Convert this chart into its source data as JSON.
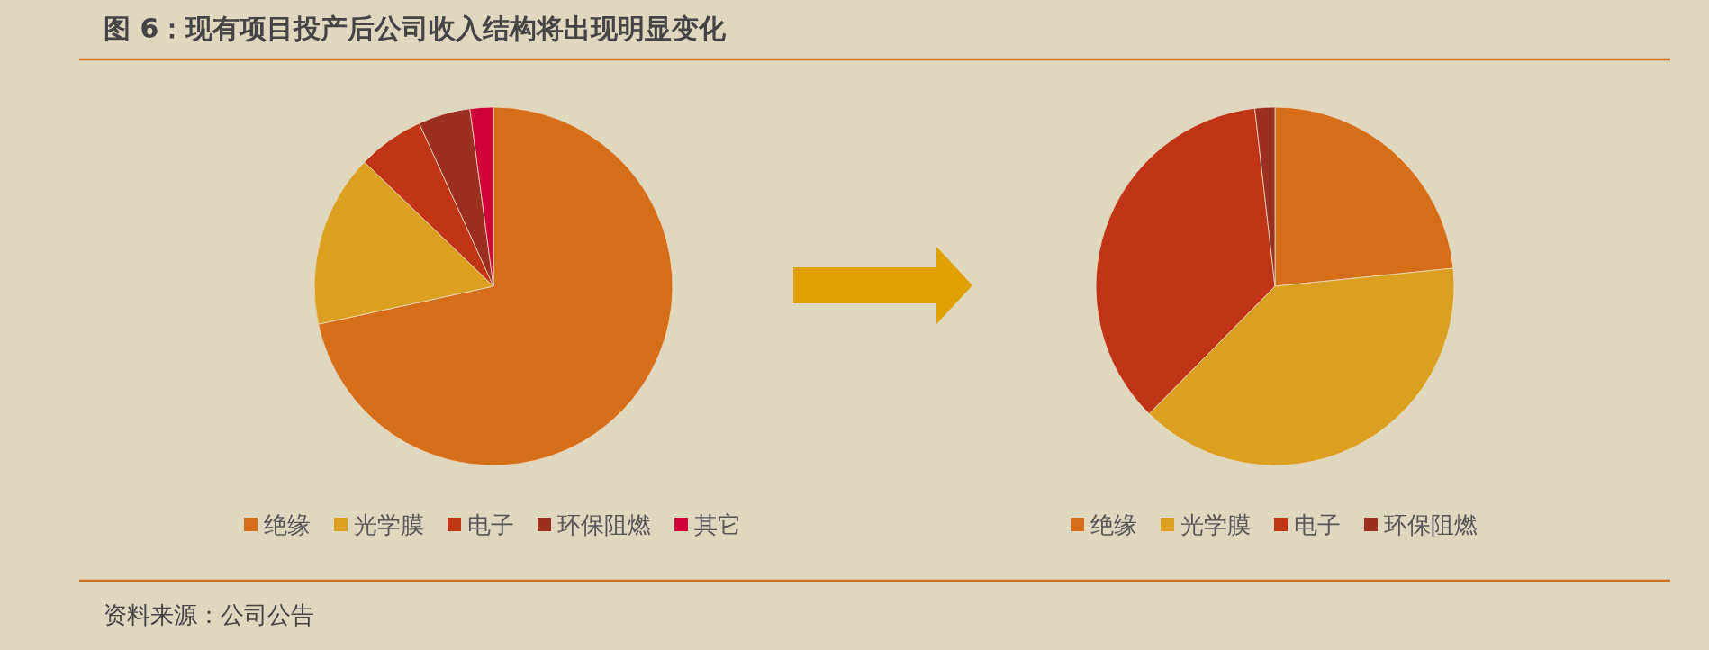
{
  "chart_data": [
    {
      "type": "pie",
      "title": "图 6：现有项目投产后公司收入结构将出现明显变化",
      "categories": [
        "绝缘",
        "光学膜",
        "电子",
        "环保阻燃",
        "其它"
      ],
      "values": [
        71.6,
        15.6,
        6.0,
        4.7,
        2.1
      ],
      "colors": [
        "#d66e19",
        "#dba020",
        "#c03515",
        "#9c3020",
        "#d0003a"
      ],
      "legend": "bottom"
    },
    {
      "type": "pie",
      "categories": [
        "绝缘",
        "光学膜",
        "电子",
        "环保阻燃"
      ],
      "values": [
        23.4,
        39.0,
        35.8,
        1.8
      ],
      "colors": [
        "#d66e19",
        "#dba020",
        "#c03515",
        "#9c3020"
      ],
      "legend": "bottom",
      "annotations": [
        "资料来源：公司公告"
      ]
    }
  ]
}
